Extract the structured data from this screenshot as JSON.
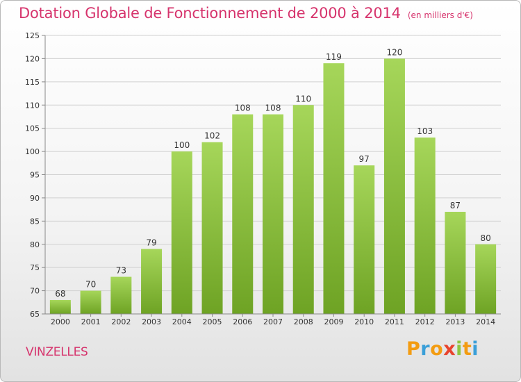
{
  "header": {
    "title": "Dotation Globale de Fonctionnement de 2000 à 2014",
    "subtitle": "(en milliers d'€)"
  },
  "footer": {
    "commune": "VINZELLES",
    "logo": {
      "letters": [
        "P",
        "r",
        "o",
        "x",
        "i",
        "t",
        "i"
      ],
      "colors": [
        "#f39c12",
        "#3a9fd8",
        "#f39c12",
        "#e8442e",
        "#8dc63f",
        "#f39c12",
        "#3a9fd8"
      ]
    }
  },
  "chart_data": {
    "type": "bar",
    "categories": [
      "2000",
      "2001",
      "2002",
      "2003",
      "2004",
      "2005",
      "2006",
      "2007",
      "2008",
      "2009",
      "2010",
      "2011",
      "2012",
      "2013",
      "2014"
    ],
    "values": [
      68,
      70,
      73,
      79,
      100,
      102,
      108,
      108,
      110,
      119,
      97,
      120,
      103,
      87,
      80
    ],
    "ylim": [
      65,
      125
    ],
    "yticks": [
      65,
      70,
      75,
      80,
      85,
      90,
      95,
      100,
      105,
      110,
      115,
      120,
      125
    ],
    "grid": true,
    "legend": "none",
    "colors": {
      "bar_top": "#a6d65a",
      "bar_bottom": "#6ea324",
      "grid": "#d0d0d0",
      "axis_text": "#333333",
      "label_text": "#333333"
    }
  }
}
